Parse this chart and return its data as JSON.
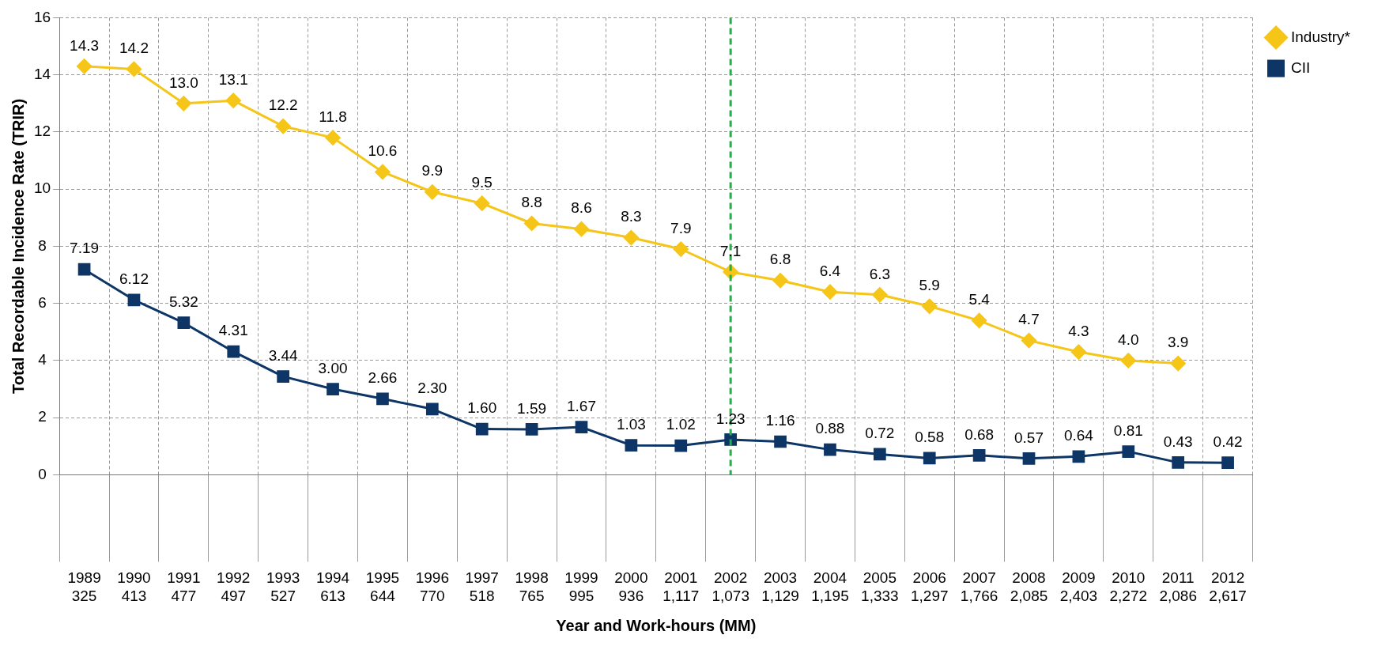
{
  "chart_data": {
    "type": "line",
    "xlabel": "Year and Work-hours (MM)",
    "ylabel": "Total Recordable Incidence Rate (TRIR)",
    "categories": [
      "1989\n325",
      "1990\n413",
      "1991\n477",
      "1992\n497",
      "1993\n527",
      "1994\n613",
      "1995\n644",
      "1996\n770",
      "1997\n518",
      "1998\n765",
      "1999\n995",
      "2000\n936",
      "2001\n1,117",
      "2002\n1,073",
      "2003\n1,129",
      "2004\n1,195",
      "2005\n1,333",
      "2006\n1,297",
      "2007\n1,766",
      "2008\n2,085",
      "2009\n2,403",
      "2010\n2,272",
      "2011\n2,086",
      "2012\n2,617"
    ],
    "series": [
      {
        "name": "Industry*",
        "color": "#f5c518",
        "marker": "diamond",
        "values": [
          14.3,
          14.2,
          13.0,
          13.1,
          12.2,
          11.8,
          10.6,
          9.9,
          9.5,
          8.8,
          8.6,
          8.3,
          7.9,
          7.1,
          6.8,
          6.4,
          6.3,
          5.9,
          5.4,
          4.7,
          4.3,
          4.0,
          3.9,
          null
        ],
        "value_labels": [
          "14.3",
          "14.2",
          "13.0",
          "13.1",
          "12.2",
          "11.8",
          "10.6",
          "9.9",
          "9.5",
          "8.8",
          "8.6",
          "8.3",
          "7.9",
          "7.1",
          "6.8",
          "6.4",
          "6.3",
          "5.9",
          "5.4",
          "4.7",
          "4.3",
          "4.0",
          "3.9",
          null
        ]
      },
      {
        "name": "CII",
        "color": "#0d3566",
        "marker": "square",
        "values": [
          7.19,
          6.12,
          5.32,
          4.31,
          3.44,
          3.0,
          2.66,
          2.3,
          1.6,
          1.59,
          1.67,
          1.03,
          1.02,
          1.23,
          1.16,
          0.88,
          0.72,
          0.58,
          0.68,
          0.57,
          0.64,
          0.81,
          0.43,
          0.42
        ],
        "value_labels": [
          "7.19",
          "6.12",
          "5.32",
          "4.31",
          "3.44",
          "3.00",
          "2.66",
          "2.30",
          "1.60",
          "1.59",
          "1.67",
          "1.03",
          "1.02",
          "1.23",
          "1.16",
          "0.88",
          "0.72",
          "0.58",
          "0.68",
          "0.57",
          "0.64",
          "0.81",
          "0.43",
          "0.42"
        ]
      }
    ],
    "ylim": [
      0,
      16
    ],
    "yticks": [
      0,
      2,
      4,
      6,
      8,
      10,
      12,
      14,
      16
    ],
    "grid": true,
    "legend": "top right",
    "ref_lines": [
      {
        "axis": "x",
        "value": "2002\n1,073",
        "color": "#22b04b",
        "line_style": "dashed"
      }
    ]
  }
}
